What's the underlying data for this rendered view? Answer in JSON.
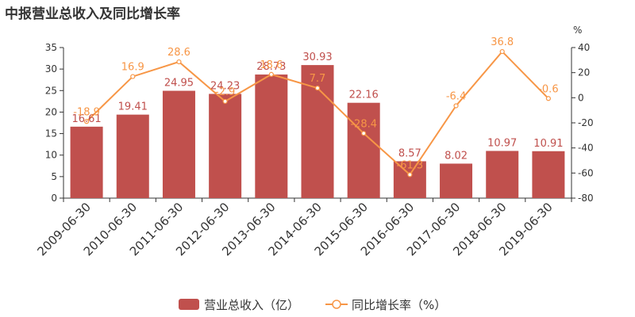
{
  "title": "中报营业总收入及同比增长率",
  "chart_data": {
    "type": "bar",
    "categories": [
      "2009-06-30",
      "2010-06-30",
      "2011-06-30",
      "2012-06-30",
      "2013-06-30",
      "2014-06-30",
      "2015-06-30",
      "2016-06-30",
      "2017-06-30",
      "2018-06-30",
      "2019-06-30"
    ],
    "series": [
      {
        "name": "营业总收入（亿）",
        "type": "bar",
        "axis": "left",
        "color": "#c0504d",
        "values": [
          16.61,
          19.41,
          24.95,
          24.23,
          28.73,
          30.93,
          22.16,
          8.57,
          8.02,
          10.97,
          10.91
        ],
        "labels": [
          "16.61",
          "19.41",
          "24.95",
          "24.23",
          "28.73",
          "30.93",
          "22.16",
          "8.57",
          "8.02",
          "10.97",
          "10.91"
        ]
      },
      {
        "name": "同比增长率（%）",
        "type": "line",
        "axis": "right",
        "color": "#f79646",
        "values": [
          -18.9,
          16.9,
          28.6,
          -2.9,
          18.6,
          7.7,
          -28.4,
          -61.3,
          -6.4,
          36.8,
          -0.6
        ],
        "labels": [
          "-18.9",
          "16.9",
          "28.6",
          "-2.9",
          "18.6",
          "7.7",
          "-28.4",
          "-61.3",
          "-6.4",
          "36.8",
          "-0.6"
        ]
      }
    ],
    "y_left": {
      "min": 0,
      "max": 35,
      "ticks": [
        "0",
        "5",
        "10",
        "15",
        "20",
        "25",
        "30",
        "35"
      ]
    },
    "y_right": {
      "min": -80,
      "max": 40,
      "unit": "%",
      "ticks": [
        "-80",
        "-60",
        "-40",
        "-20",
        "0",
        "20",
        "40"
      ]
    },
    "grid": false,
    "legend_position": "bottom"
  }
}
